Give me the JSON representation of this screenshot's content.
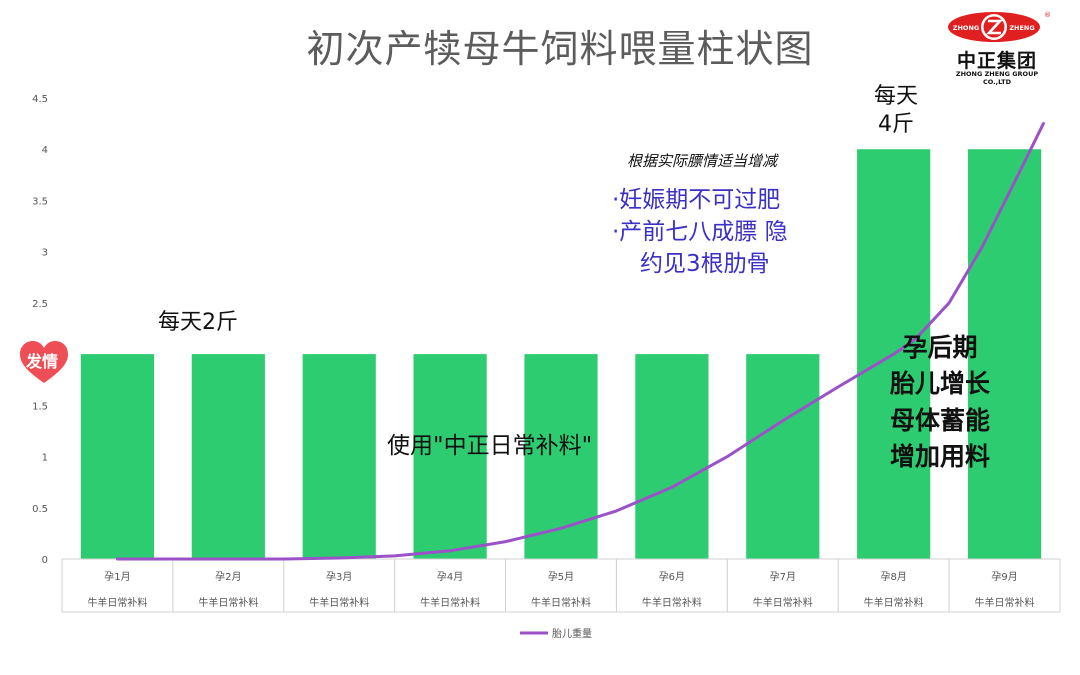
{
  "chart_data": {
    "type": "bar",
    "title": "初次产犊母牛饲料喂量柱状图",
    "categories": [
      "孕1月",
      "孕2月",
      "孕3月",
      "孕4月",
      "孕5月",
      "孕6月",
      "孕7月",
      "孕8月",
      "孕9月"
    ],
    "category_sublabel": "牛羊日常补料",
    "values": [
      2,
      2,
      2,
      2,
      2,
      2,
      2,
      4,
      4
    ],
    "ylim": [
      0,
      4.5
    ],
    "yticks": [
      "0",
      "0.5",
      "1",
      "1.5",
      "2",
      "2.5",
      "3",
      "3.5",
      "4",
      "4.5"
    ],
    "bar_color": "#2ecc71",
    "line_series": {
      "name": "胎儿重量",
      "color": "#9b51c7",
      "points": [
        [
          0.5,
          0
        ],
        [
          1,
          0
        ],
        [
          1.5,
          0
        ],
        [
          2,
          0
        ],
        [
          2.5,
          0.01
        ],
        [
          3,
          0.03
        ],
        [
          3.5,
          0.08
        ],
        [
          4,
          0.17
        ],
        [
          4.5,
          0.3
        ],
        [
          5,
          0.47
        ],
        [
          5.5,
          0.7
        ],
        [
          6,
          1.0
        ],
        [
          6.5,
          1.35
        ],
        [
          7,
          1.68
        ],
        [
          7.5,
          2.0
        ],
        [
          7.7,
          2.15
        ],
        [
          8,
          2.5
        ],
        [
          8.3,
          3.05
        ],
        [
          8.6,
          3.7
        ],
        [
          8.85,
          4.25
        ]
      ]
    },
    "legend_placement": "bottom"
  },
  "logo": {
    "name_cn": "中正集团",
    "name_en": "ZHONG ZHENG GROUP CO.,LTD",
    "badge_left": "ZHONG",
    "badge_right": "ZHENG",
    "reg_mark": "®"
  },
  "annotations": {
    "heart_label": "发情",
    "daily_2": "每天2斤",
    "daily_4_line1": "每天",
    "daily_4_line2": "4斤",
    "usage": "使用\"中正日常补料\"",
    "adjust_note": "根据实际膘情适当增减",
    "tip_1": "·妊娠期不可过肥",
    "tip_2": "·产前七八成膘 隐",
    "tip_3": "约见3根肋骨",
    "late_1": "孕后期",
    "late_2": "胎儿增长",
    "late_3": "母体蓄能",
    "late_4": "增加用料"
  },
  "colors": {
    "bar": "#2ecc71",
    "line": "#9b51c7",
    "heart": "#ee4e56",
    "logo_red": "#e02020",
    "note_blue": "#3a2fc6"
  }
}
